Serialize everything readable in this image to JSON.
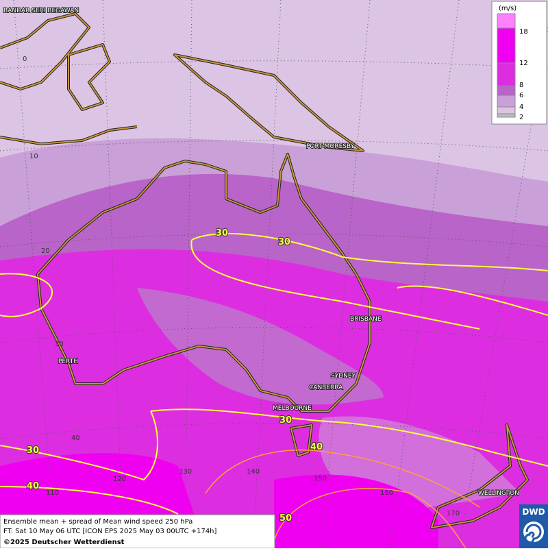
{
  "map": {
    "cities": [
      "BANDAR SERI BEGAWAN",
      "PORT MORESBY",
      "BRISBANE",
      "PERTH",
      "SYDNEY",
      "CANBERRA",
      "MELBOURNE",
      "WELLINGTON"
    ],
    "lat_labels": [
      0,
      10,
      20,
      30,
      40
    ],
    "lon_labels": [
      110,
      120,
      130,
      140,
      150,
      160,
      170
    ],
    "contour_labels": [
      30,
      30,
      30,
      30,
      40,
      40,
      50
    ]
  },
  "legend": {
    "unit": "(m/s)",
    "levels": [
      2,
      4,
      6,
      8,
      12,
      18
    ]
  },
  "footer": {
    "line1": "Ensemble mean + spread of Mean wind speed 250 hPa",
    "line2": "FT: Sat 10 May 06 UTC [ICON EPS 2025 May 03 00UTC +174h]",
    "copyright": "©2025 Deutscher Wetterdienst"
  },
  "logo": "DWD"
}
